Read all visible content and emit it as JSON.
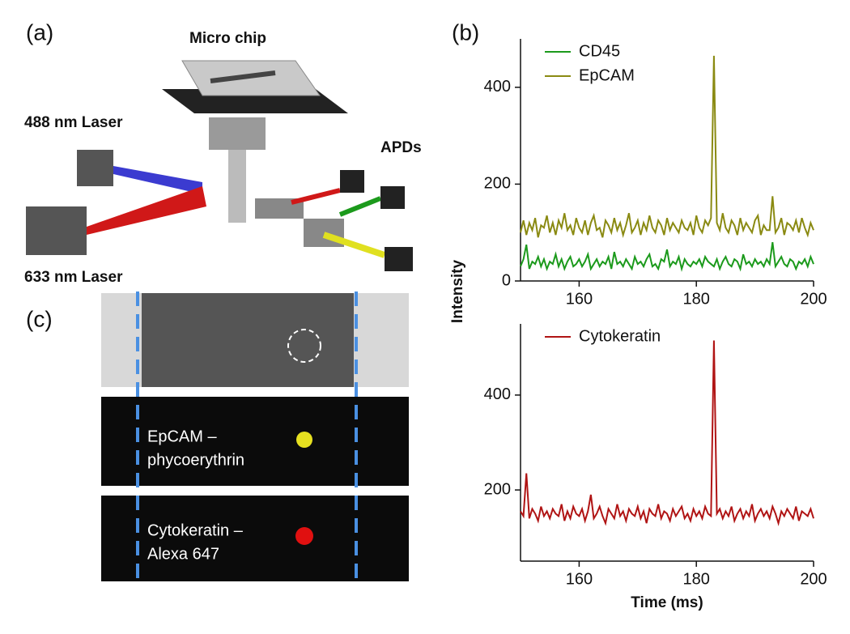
{
  "panel_a": {
    "label": "(a)",
    "micro_chip": "Micro chip",
    "laser_488": "488 nm Laser",
    "apds": "APDs",
    "laser_633": "633 nm Laser"
  },
  "panel_c": {
    "label": "(c)",
    "middle": [
      "EpCAM –",
      "phycoerythrin"
    ],
    "bottom": [
      "Cytokeratin –",
      "Alexa 647"
    ]
  },
  "chart_data": [
    {
      "type": "line",
      "panel_label": "(b)",
      "ylabel": "Intensity",
      "legend": "upper left",
      "x": [
        150,
        150.5,
        151,
        151.5,
        152,
        152.5,
        153,
        153.5,
        154,
        154.5,
        155,
        155.5,
        156,
        156.5,
        157,
        157.5,
        158,
        158.5,
        159,
        159.5,
        160,
        160.5,
        161,
        161.5,
        162,
        162.5,
        163,
        163.5,
        164,
        164.5,
        165,
        165.5,
        166,
        166.5,
        167,
        167.5,
        168,
        168.5,
        169,
        169.5,
        170,
        170.5,
        171,
        171.5,
        172,
        172.5,
        173,
        173.5,
        174,
        174.5,
        175,
        175.5,
        176,
        176.5,
        177,
        177.5,
        178,
        178.5,
        179,
        179.5,
        180,
        180.5,
        181,
        181.5,
        182,
        182.5,
        183,
        183.5,
        184,
        184.5,
        185,
        185.5,
        186,
        186.5,
        187,
        187.5,
        188,
        188.5,
        189,
        189.5,
        190,
        190.5,
        191,
        191.5,
        192,
        192.5,
        193,
        193.5,
        194,
        194.5,
        195,
        195.5,
        196,
        196.5,
        197,
        197.5,
        198,
        198.5,
        199,
        199.5,
        200
      ],
      "series": [
        {
          "name": "CD45",
          "color": "#1c9a1c",
          "values": [
            30,
            45,
            75,
            25,
            40,
            35,
            50,
            30,
            45,
            25,
            40,
            35,
            55,
            30,
            45,
            25,
            40,
            50,
            30,
            35,
            45,
            30,
            40,
            55,
            25,
            35,
            45,
            30,
            40,
            35,
            50,
            25,
            60,
            35,
            40,
            30,
            45,
            35,
            25,
            50,
            35,
            40,
            30,
            45,
            55,
            30,
            35,
            25,
            45,
            40,
            65,
            30,
            40,
            35,
            50,
            25,
            45,
            35,
            30,
            40,
            35,
            45,
            30,
            50,
            40,
            35,
            30,
            45,
            25,
            40,
            50,
            35,
            30,
            45,
            40,
            25,
            55,
            35,
            40,
            30,
            45,
            35,
            40,
            30,
            45,
            35,
            80,
            30,
            40,
            50,
            35,
            30,
            45,
            40,
            25,
            40,
            35,
            45,
            30,
            50,
            35
          ]
        },
        {
          "name": "EpCAM",
          "color": "#8a8a12",
          "values": [
            100,
            125,
            95,
            120,
            105,
            130,
            90,
            115,
            110,
            135,
            100,
            120,
            95,
            125,
            110,
            140,
            105,
            115,
            95,
            130,
            110,
            100,
            125,
            95,
            120,
            135,
            105,
            110,
            90,
            125,
            115,
            100,
            130,
            105,
            120,
            95,
            115,
            140,
            100,
            110,
            125,
            95,
            120,
            105,
            135,
            110,
            100,
            125,
            115,
            95,
            130,
            105,
            120,
            110,
            100,
            125,
            110,
            105,
            120,
            95,
            135,
            110,
            100,
            125,
            115,
            130,
            465,
            120,
            105,
            140,
            110,
            100,
            125,
            115,
            95,
            130,
            105,
            120,
            110,
            100,
            125,
            135,
            95,
            115,
            105,
            105,
            175,
            100,
            110,
            130,
            95,
            120,
            115,
            105,
            125,
            100,
            130,
            110,
            95,
            120,
            105
          ]
        }
      ],
      "xlim": [
        150,
        200
      ],
      "xticks": [
        160,
        180,
        200
      ],
      "ylim": [
        0,
        500
      ],
      "yticks": [
        0,
        200,
        400
      ]
    },
    {
      "type": "line",
      "xlabel": "Time (ms)",
      "legend": "upper left",
      "x": [
        150,
        150.5,
        151,
        151.5,
        152,
        152.5,
        153,
        153.5,
        154,
        154.5,
        155,
        155.5,
        156,
        156.5,
        157,
        157.5,
        158,
        158.5,
        159,
        159.5,
        160,
        160.5,
        161,
        161.5,
        162,
        162.5,
        163,
        163.5,
        164,
        164.5,
        165,
        165.5,
        166,
        166.5,
        167,
        167.5,
        168,
        168.5,
        169,
        169.5,
        170,
        170.5,
        171,
        171.5,
        172,
        172.5,
        173,
        173.5,
        174,
        174.5,
        175,
        175.5,
        176,
        176.5,
        177,
        177.5,
        178,
        178.5,
        179,
        179.5,
        180,
        180.5,
        181,
        181.5,
        182,
        182.5,
        183,
        183.5,
        184,
        184.5,
        185,
        185.5,
        186,
        186.5,
        187,
        187.5,
        188,
        188.5,
        189,
        189.5,
        190,
        190.5,
        191,
        191.5,
        192,
        192.5,
        193,
        193.5,
        194,
        194.5,
        195,
        195.5,
        196,
        196.5,
        197,
        197.5,
        198,
        198.5,
        199,
        199.5,
        200
      ],
      "series": [
        {
          "name": "Cytokeratin",
          "color": "#b01414",
          "values": [
            155,
            145,
            235,
            140,
            160,
            150,
            135,
            165,
            145,
            155,
            140,
            160,
            150,
            145,
            170,
            135,
            155,
            140,
            165,
            150,
            145,
            160,
            135,
            155,
            190,
            140,
            150,
            165,
            145,
            130,
            160,
            150,
            140,
            170,
            145,
            155,
            135,
            160,
            150,
            145,
            165,
            140,
            155,
            130,
            160,
            150,
            145,
            170,
            140,
            155,
            150,
            135,
            160,
            145,
            155,
            165,
            140,
            150,
            135,
            160,
            145,
            155,
            140,
            165,
            150,
            145,
            515,
            150,
            160,
            140,
            155,
            145,
            165,
            135,
            150,
            160,
            140,
            155,
            145,
            170,
            135,
            150,
            160,
            145,
            155,
            140,
            165,
            150,
            130,
            155,
            145,
            160,
            150,
            140,
            165,
            135,
            155,
            150,
            145,
            160,
            140
          ]
        }
      ],
      "xlim": [
        150,
        200
      ],
      "xticks": [
        160,
        180,
        200
      ],
      "ylim": [
        50,
        550
      ],
      "yticks": [
        200,
        400
      ]
    }
  ]
}
